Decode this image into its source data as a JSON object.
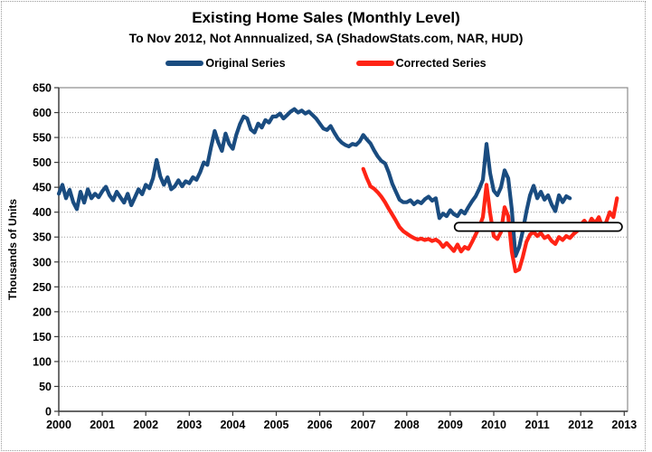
{
  "title": "Existing Home Sales (Monthly Level)",
  "subtitle": "To Nov 2012, Not Annnualized, SA (ShadowStats.com, NAR, HUD)",
  "legend": [
    {
      "label": "Original Series",
      "color": "#1A4C80"
    },
    {
      "label": "Corrected Series",
      "color": "#FF2415"
    }
  ],
  "chart_data": {
    "type": "line",
    "title": "Existing Home Sales (Monthly Level)",
    "subtitle": "To Nov 2012, Not Annnualized, SA (ShadowStats.com, NAR, HUD)",
    "xlabel": "",
    "ylabel": "Thousands of Units",
    "ylim": [
      0,
      650
    ],
    "y_tick_step": 50,
    "x_ticks": [
      2000,
      2001,
      2002,
      2003,
      2004,
      2005,
      2006,
      2007,
      2008,
      2009,
      2010,
      2011,
      2012,
      2013
    ],
    "grid": "horizontal dotted gray lines every 50",
    "legend_position": "top-center",
    "frequency": "monthly",
    "series": [
      {
        "name": "Original Series",
        "color": "#1A4C80",
        "start_year": 2000,
        "start_month": 1,
        "end": "Oct 2011",
        "values": [
          437,
          455,
          428,
          445,
          420,
          406,
          441,
          419,
          446,
          428,
          437,
          430,
          442,
          451,
          434,
          424,
          441,
          430,
          419,
          437,
          414,
          430,
          446,
          436,
          455,
          448,
          468,
          505,
          472,
          455,
          470,
          446,
          452,
          464,
          452,
          462,
          458,
          470,
          465,
          480,
          500,
          495,
          530,
          563,
          540,
          523,
          558,
          537,
          527,
          556,
          577,
          592,
          588,
          566,
          560,
          578,
          570,
          585,
          580,
          592,
          592,
          598,
          588,
          595,
          602,
          607,
          600,
          604,
          598,
          602,
          595,
          588,
          578,
          568,
          565,
          573,
          560,
          548,
          540,
          535,
          532,
          537,
          535,
          542,
          555,
          546,
          538,
          524,
          512,
          503,
          498,
          480,
          457,
          441,
          425,
          420,
          420,
          424,
          416,
          422,
          418,
          426,
          431,
          423,
          428,
          388,
          397,
          392,
          404,
          396,
          392,
          403,
          397,
          410,
          422,
          432,
          447,
          465,
          537,
          478,
          443,
          434,
          450,
          484,
          468,
          405,
          312,
          330,
          362,
          401,
          434,
          453,
          428,
          441,
          425,
          434,
          415,
          402,
          434,
          420,
          432,
          428
        ]
      },
      {
        "name": "Corrected Series",
        "color": "#FF2415",
        "start_year": 2007,
        "start_month": 1,
        "end": "Nov 2012",
        "values": [
          487,
          468,
          452,
          447,
          440,
          431,
          420,
          407,
          395,
          383,
          370,
          362,
          357,
          352,
          348,
          345,
          347,
          344,
          346,
          342,
          345,
          340,
          330,
          338,
          330,
          322,
          335,
          321,
          330,
          326,
          340,
          355,
          370,
          390,
          455,
          398,
          352,
          346,
          360,
          410,
          392,
          320,
          281,
          285,
          310,
          340,
          355,
          360,
          352,
          358,
          348,
          352,
          342,
          336,
          350,
          344,
          352,
          348,
          356,
          362,
          375,
          383,
          372,
          387,
          378,
          390,
          370,
          380,
          400,
          390,
          428
        ]
      }
    ],
    "annotation": {
      "shape": "stadium-bar",
      "description": "white flat-trend highlight bar with black outline",
      "x_from": 2009.1,
      "x_to": 2012.95,
      "y_top": 379,
      "y_bottom": 362,
      "fill": "#FFFFFF",
      "stroke": "#000000"
    }
  }
}
